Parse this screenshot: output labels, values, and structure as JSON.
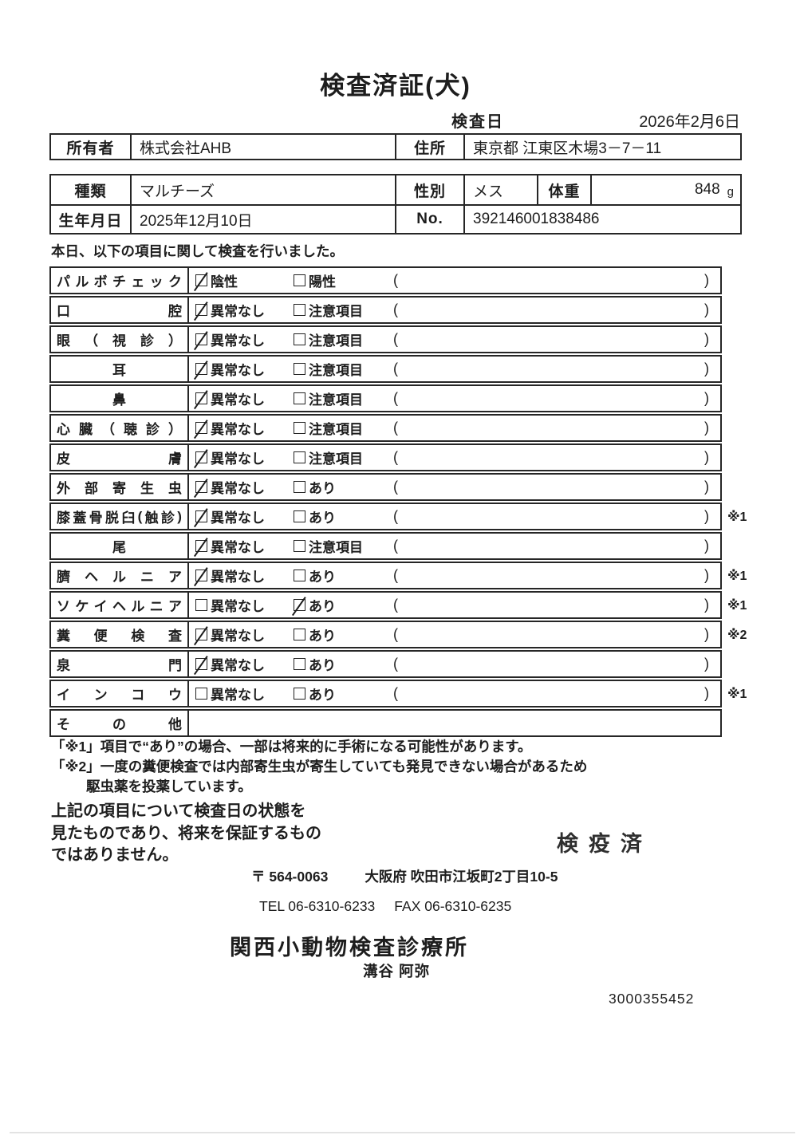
{
  "colors": {
    "paper": "#ffffff",
    "ink": "#1d1d1d",
    "line": "#262626"
  },
  "title": "検査済証(犬)",
  "exam_date": {
    "label": "検査日",
    "value": "2026年2月6日"
  },
  "owner_table": {
    "owner_label": "所有者",
    "owner_value": "株式会社AHB",
    "address_label": "住所",
    "address_value": "東京都 江東区木場3－7－11"
  },
  "pet_table": {
    "species_label": "種類",
    "species_value": "マルチーズ",
    "sex_label": "性別",
    "sex_value": "メス",
    "weight_label": "体重",
    "weight_value": "848",
    "weight_unit": "g",
    "birth_label": "生年月日",
    "birth_value": "2025年12月10日",
    "no_label": "No.",
    "no_value": "392146001838486"
  },
  "intro": "本日、以下の項目に関して検査を行いました。",
  "checklist": {
    "paren_open": "(",
    "paren_close": ")",
    "rows": [
      {
        "label": "パルボチェック",
        "opt1": "陰性",
        "opt2": "陽性",
        "checked": 1,
        "note": ""
      },
      {
        "label": "口腔",
        "opt1": "異常なし",
        "opt2": "注意項目",
        "checked": 1,
        "note": ""
      },
      {
        "label": "眼（視診）",
        "opt1": "異常なし",
        "opt2": "注意項目",
        "checked": 1,
        "note": ""
      },
      {
        "label": "耳",
        "opt1": "異常なし",
        "opt2": "注意項目",
        "checked": 1,
        "note": ""
      },
      {
        "label": "鼻",
        "opt1": "異常なし",
        "opt2": "注意項目",
        "checked": 1,
        "note": ""
      },
      {
        "label": "心臓（聴診）",
        "opt1": "異常なし",
        "opt2": "注意項目",
        "checked": 1,
        "note": ""
      },
      {
        "label": "皮膚",
        "opt1": "異常なし",
        "opt2": "注意項目",
        "checked": 1,
        "note": ""
      },
      {
        "label": "外部寄生虫",
        "opt1": "異常なし",
        "opt2": "あり",
        "checked": 1,
        "note": ""
      },
      {
        "label": "膝蓋骨脱臼(触診)",
        "opt1": "異常なし",
        "opt2": "あり",
        "checked": 1,
        "note": "※1"
      },
      {
        "label": "尾",
        "opt1": "異常なし",
        "opt2": "注意項目",
        "checked": 1,
        "note": ""
      },
      {
        "label": "臍ヘルニア",
        "opt1": "異常なし",
        "opt2": "あり",
        "checked": 1,
        "note": "※1"
      },
      {
        "label": "ソケイヘルニア",
        "opt1": "異常なし",
        "opt2": "あり",
        "checked": 2,
        "note": "※1"
      },
      {
        "label": "糞便検査",
        "opt1": "異常なし",
        "opt2": "あり",
        "checked": 1,
        "note": "※2"
      },
      {
        "label": "泉門",
        "opt1": "異常なし",
        "opt2": "あり",
        "checked": 1,
        "note": ""
      },
      {
        "label": "インコウ",
        "opt1": "異常なし",
        "opt2": "あり",
        "checked": 0,
        "note": "※1"
      },
      {
        "label": "その他",
        "opt1": "",
        "opt2": "",
        "checked": 0,
        "note": "",
        "empty": true
      }
    ]
  },
  "footnotes": {
    "line1": "「※1」項目で“あり”の場合、一部は将来的に手術になる可能性があります。",
    "line2": "「※2」一度の糞便検査では内部寄生虫が寄生していても発見できない場合があるため",
    "line3": "駆虫薬を投薬しています。"
  },
  "disclaimer": {
    "line1": "上記の項目について検査日の状態を",
    "line2": "見たものであり、将来を保証するもの",
    "line3": "ではありません。"
  },
  "stamp": "検疫済",
  "clinic": {
    "postal": "〒 564-0063",
    "address": "大阪府 吹田市江坂町2丁目10-5",
    "tel": "TEL 06-6310-6233",
    "fax": "FAX 06-6310-6235",
    "name": "関西小動物検査診療所",
    "vet": "溝谷 阿弥",
    "serial": "3000355452"
  }
}
